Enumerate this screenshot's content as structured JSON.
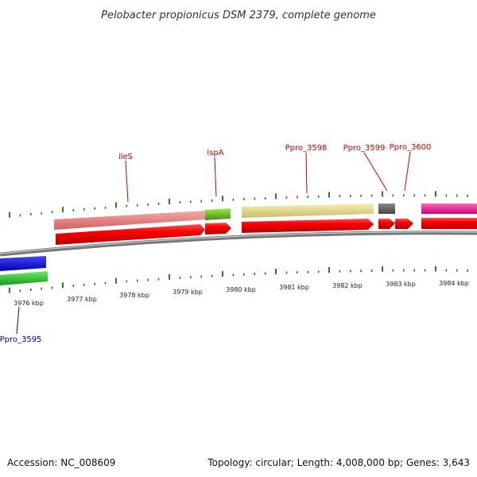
{
  "title": "Pelobacter propionicus DSM 2379, complete genome",
  "footer": {
    "accession": "Accession: NC_008609",
    "summary": "Topology: circular; Length: 4,008,000 bp; Genes: 3,643"
  },
  "colors": {
    "backbone": "#888888",
    "tick": "#2e7d1e",
    "label_top": "#cc0000",
    "label_bottom": "#0000aa",
    "cds": "#ee0000"
  },
  "kbp_labels": [
    "3976 kbp",
    "3977 kbp",
    "3978 kbp",
    "3979 kbp",
    "3980 kbp",
    "3981 kbp",
    "3982 kbp",
    "3983 kbp",
    "3984 kbp"
  ],
  "genes_top": [
    {
      "name": "ileS",
      "label_color": "#cc0000"
    },
    {
      "name": "lspA",
      "label_color": "#cc0000"
    },
    {
      "name": "Ppro_3598",
      "label_color": "#cc0000"
    },
    {
      "name": "Ppro_3599",
      "label_color": "#cc0000"
    },
    {
      "name": "Ppro_3600",
      "label_color": "#cc0000"
    }
  ],
  "genes_bottom": [
    {
      "name": "Ppro_3595",
      "label_color": "#0000aa"
    }
  ],
  "feature_colors": {
    "ileS": "#f08a8a",
    "lspA": "#77cc33",
    "Ppro_3598": "#eee399",
    "Ppro_3599": "#777777",
    "Ppro_3600": "#ff33aa",
    "Ppro_3595_blue": "#1111ee",
    "Ppro_3595_green": "#33cc33"
  }
}
